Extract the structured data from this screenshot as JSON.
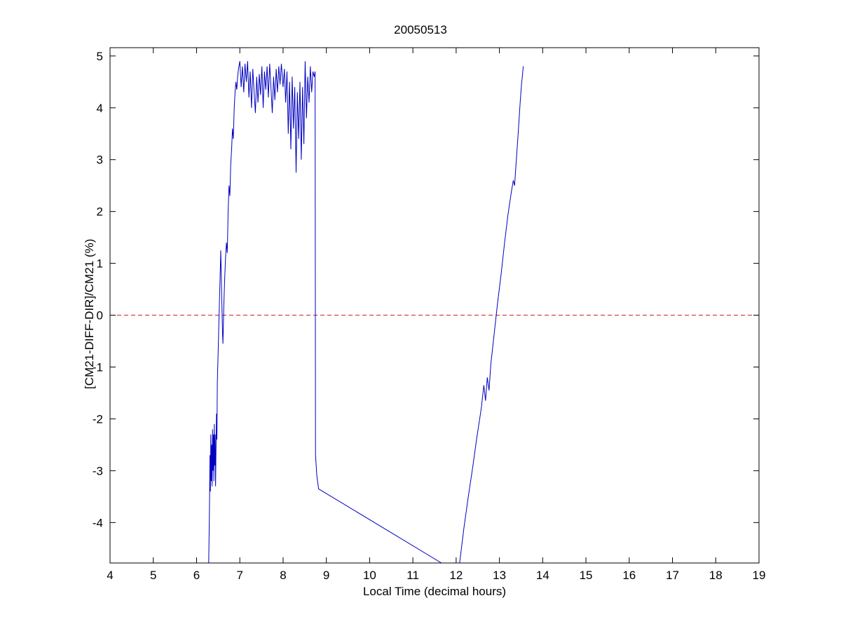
{
  "figure": {
    "background": "#ffffff",
    "axis_color": "#000000"
  },
  "chart_data": {
    "type": "line",
    "title": "20050513",
    "xlabel": "Local Time (decimal hours)",
    "ylabel": "[CM21-DIFF-DIR]/CM21 (%)",
    "xlim": [
      4,
      19
    ],
    "ylim": [
      -4.78,
      5.16
    ],
    "xticks": [
      4,
      5,
      6,
      7,
      8,
      9,
      10,
      11,
      12,
      13,
      14,
      15,
      16,
      17,
      18,
      19
    ],
    "yticks": [
      -4,
      -3,
      -2,
      -1,
      0,
      1,
      2,
      3,
      4,
      5
    ],
    "grid": false,
    "legend_position": "none",
    "reference_line": {
      "y": 0,
      "color": "#cc2222",
      "style": "dashed"
    },
    "series": [
      {
        "name": "(CM21-DIFF-DIR)/CM21",
        "color": "#0000c0",
        "segments": [
          [
            [
              6.28,
              -4.78
            ],
            [
              6.3,
              -3.6
            ],
            [
              6.31,
              -2.7
            ],
            [
              6.32,
              -3.4
            ],
            [
              6.33,
              -2.3
            ],
            [
              6.34,
              -3.2
            ],
            [
              6.35,
              -2.5
            ],
            [
              6.36,
              -3.3
            ],
            [
              6.37,
              -2.2
            ],
            [
              6.38,
              -3.0
            ],
            [
              6.39,
              -2.3
            ],
            [
              6.4,
              -3.2
            ],
            [
              6.41,
              -2.1
            ],
            [
              6.42,
              -2.9
            ],
            [
              6.43,
              -2.3
            ],
            [
              6.44,
              -3.3
            ],
            [
              6.45,
              -2.6
            ],
            [
              6.46,
              -1.9
            ],
            [
              6.47,
              -2.4
            ],
            [
              6.48,
              -1.3
            ],
            [
              6.5,
              -0.7
            ],
            [
              6.52,
              0.0
            ],
            [
              6.54,
              0.6
            ],
            [
              6.56,
              1.25
            ],
            [
              6.58,
              0.4
            ],
            [
              6.6,
              -0.35
            ],
            [
              6.61,
              -0.55
            ],
            [
              6.63,
              0.2
            ],
            [
              6.65,
              0.7
            ],
            [
              6.67,
              1.1
            ],
            [
              6.69,
              1.4
            ],
            [
              6.71,
              1.2
            ],
            [
              6.73,
              2.0
            ],
            [
              6.75,
              2.5
            ],
            [
              6.77,
              2.3
            ],
            [
              6.79,
              2.9
            ],
            [
              6.81,
              3.2
            ],
            [
              6.83,
              3.6
            ],
            [
              6.85,
              3.4
            ],
            [
              6.87,
              4.0
            ],
            [
              6.89,
              4.3
            ],
            [
              6.91,
              4.5
            ],
            [
              6.93,
              4.35
            ],
            [
              6.95,
              4.6
            ],
            [
              6.97,
              4.75
            ],
            [
              7.0,
              4.9
            ],
            [
              7.03,
              4.4
            ],
            [
              7.06,
              4.8
            ],
            [
              7.09,
              4.3
            ],
            [
              7.12,
              4.85
            ],
            [
              7.15,
              4.5
            ],
            [
              7.18,
              4.9
            ],
            [
              7.21,
              4.2
            ],
            [
              7.24,
              4.7
            ],
            [
              7.27,
              4.0
            ],
            [
              7.3,
              4.75
            ],
            [
              7.33,
              4.3
            ],
            [
              7.36,
              3.9
            ],
            [
              7.39,
              4.6
            ],
            [
              7.42,
              4.1
            ],
            [
              7.45,
              4.65
            ],
            [
              7.48,
              4.25
            ],
            [
              7.51,
              4.8
            ],
            [
              7.54,
              4.0
            ],
            [
              7.57,
              4.7
            ],
            [
              7.6,
              4.35
            ],
            [
              7.63,
              4.8
            ],
            [
              7.66,
              4.2
            ],
            [
              7.69,
              4.85
            ],
            [
              7.72,
              4.4
            ],
            [
              7.75,
              3.9
            ],
            [
              7.78,
              4.6
            ],
            [
              7.81,
              4.15
            ],
            [
              7.84,
              4.75
            ],
            [
              7.87,
              4.3
            ],
            [
              7.9,
              4.8
            ],
            [
              7.93,
              4.45
            ],
            [
              7.96,
              4.85
            ],
            [
              8.0,
              4.4
            ],
            [
              8.03,
              4.75
            ],
            [
              8.06,
              4.1
            ],
            [
              8.09,
              4.7
            ],
            [
              8.12,
              3.5
            ],
            [
              8.15,
              4.5
            ],
            [
              8.18,
              3.2
            ],
            [
              8.21,
              4.6
            ],
            [
              8.24,
              3.6
            ],
            [
              8.27,
              4.4
            ],
            [
              8.3,
              2.75
            ],
            [
              8.33,
              4.3
            ],
            [
              8.36,
              3.4
            ],
            [
              8.39,
              4.5
            ],
            [
              8.42,
              3.0
            ],
            [
              8.45,
              4.4
            ],
            [
              8.48,
              3.3
            ],
            [
              8.51,
              4.9
            ],
            [
              8.54,
              3.8
            ],
            [
              8.57,
              4.6
            ],
            [
              8.6,
              4.1
            ],
            [
              8.63,
              4.8
            ],
            [
              8.66,
              4.3
            ],
            [
              8.69,
              4.7
            ],
            [
              8.72,
              4.6
            ],
            [
              8.74,
              4.7
            ],
            [
              8.75,
              -2.7
            ],
            [
              8.78,
              -3.1
            ],
            [
              8.82,
              -3.35
            ],
            [
              11.66,
              -4.78
            ]
          ],
          [
            [
              12.08,
              -4.78
            ],
            [
              12.18,
              -4.1
            ],
            [
              12.28,
              -3.5
            ],
            [
              12.38,
              -2.95
            ],
            [
              12.48,
              -2.35
            ],
            [
              12.58,
              -1.8
            ],
            [
              12.64,
              -1.35
            ],
            [
              12.68,
              -1.65
            ],
            [
              12.72,
              -1.2
            ],
            [
              12.76,
              -1.45
            ],
            [
              12.8,
              -0.95
            ],
            [
              12.88,
              -0.35
            ],
            [
              12.96,
              0.25
            ],
            [
              13.04,
              0.8
            ],
            [
              13.12,
              1.4
            ],
            [
              13.2,
              1.95
            ],
            [
              13.28,
              2.4
            ],
            [
              13.32,
              2.6
            ],
            [
              13.35,
              2.5
            ],
            [
              13.4,
              3.1
            ],
            [
              13.44,
              3.6
            ],
            [
              13.48,
              4.1
            ],
            [
              13.51,
              4.45
            ],
            [
              13.53,
              4.6
            ],
            [
              13.55,
              4.8
            ]
          ]
        ]
      }
    ]
  }
}
